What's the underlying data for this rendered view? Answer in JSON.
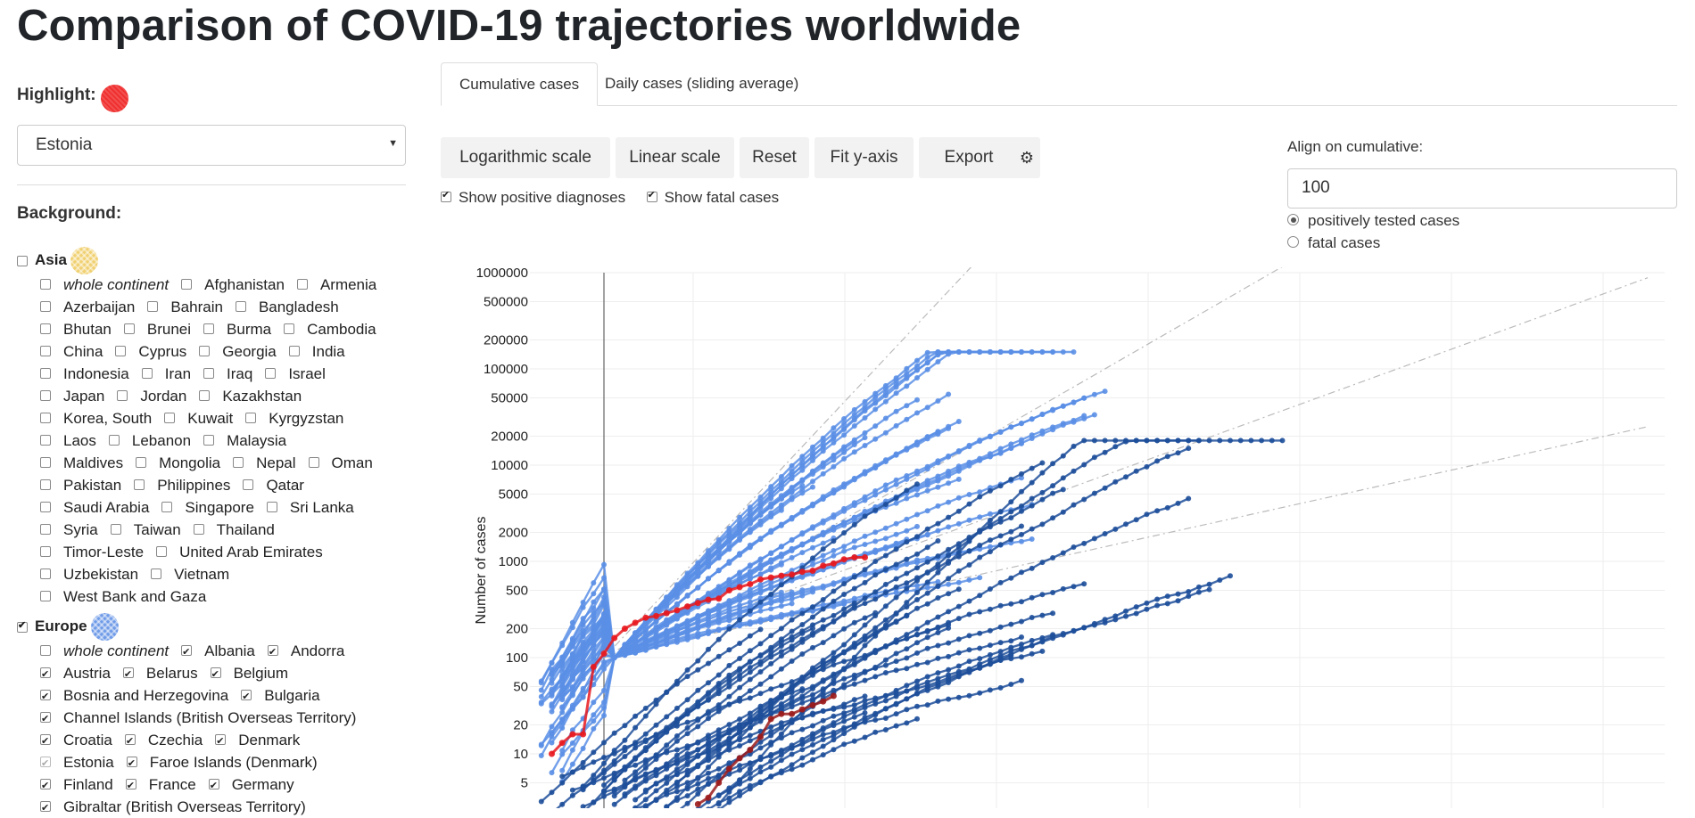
{
  "page_title": "Comparison of COVID-19 trajectories worldwide",
  "highlight": {
    "label": "Highlight:",
    "color": "#f03030",
    "selected": "Estonia"
  },
  "background_label": "Background:",
  "groups": [
    {
      "name": "Asia",
      "checked": false,
      "color": "#f0d070",
      "rows": [
        [
          {
            "label": "whole continent",
            "italic": true,
            "checked": false
          },
          {
            "label": "Afghanistan",
            "checked": false
          },
          {
            "label": "Armenia",
            "checked": false
          }
        ],
        [
          {
            "label": "Azerbaijan",
            "checked": false
          },
          {
            "label": "Bahrain",
            "checked": false
          },
          {
            "label": "Bangladesh",
            "checked": false
          }
        ],
        [
          {
            "label": "Bhutan",
            "checked": false
          },
          {
            "label": "Brunei",
            "checked": false
          },
          {
            "label": "Burma",
            "checked": false
          },
          {
            "label": "Cambodia",
            "checked": false
          }
        ],
        [
          {
            "label": "China",
            "checked": false
          },
          {
            "label": "Cyprus",
            "checked": false
          },
          {
            "label": "Georgia",
            "checked": false
          },
          {
            "label": "India",
            "checked": false
          }
        ],
        [
          {
            "label": "Indonesia",
            "checked": false
          },
          {
            "label": "Iran",
            "checked": false
          },
          {
            "label": "Iraq",
            "checked": false
          },
          {
            "label": "Israel",
            "checked": false
          }
        ],
        [
          {
            "label": "Japan",
            "checked": false
          },
          {
            "label": "Jordan",
            "checked": false
          },
          {
            "label": "Kazakhstan",
            "checked": false
          }
        ],
        [
          {
            "label": "Korea, South",
            "checked": false
          },
          {
            "label": "Kuwait",
            "checked": false
          },
          {
            "label": "Kyrgyzstan",
            "checked": false
          }
        ],
        [
          {
            "label": "Laos",
            "checked": false
          },
          {
            "label": "Lebanon",
            "checked": false
          },
          {
            "label": "Malaysia",
            "checked": false
          }
        ],
        [
          {
            "label": "Maldives",
            "checked": false
          },
          {
            "label": "Mongolia",
            "checked": false
          },
          {
            "label": "Nepal",
            "checked": false
          },
          {
            "label": "Oman",
            "checked": false
          }
        ],
        [
          {
            "label": "Pakistan",
            "checked": false
          },
          {
            "label": "Philippines",
            "checked": false
          },
          {
            "label": "Qatar",
            "checked": false
          }
        ],
        [
          {
            "label": "Saudi Arabia",
            "checked": false
          },
          {
            "label": "Singapore",
            "checked": false
          },
          {
            "label": "Sri Lanka",
            "checked": false
          }
        ],
        [
          {
            "label": "Syria",
            "checked": false
          },
          {
            "label": "Taiwan",
            "checked": false
          },
          {
            "label": "Thailand",
            "checked": false
          }
        ],
        [
          {
            "label": "Timor-Leste",
            "checked": false
          },
          {
            "label": "United Arab Emirates",
            "checked": false
          }
        ],
        [
          {
            "label": "Uzbekistan",
            "checked": false
          },
          {
            "label": "Vietnam",
            "checked": false
          }
        ],
        [
          {
            "label": "West Bank and Gaza",
            "checked": false
          }
        ]
      ]
    },
    {
      "name": "Europe",
      "checked": true,
      "color": "#6f9be8",
      "rows": [
        [
          {
            "label": "whole continent",
            "italic": true,
            "checked": false
          },
          {
            "label": "Albania",
            "checked": true
          },
          {
            "label": "Andorra",
            "checked": true
          }
        ],
        [
          {
            "label": "Austria",
            "checked": true
          },
          {
            "label": "Belarus",
            "checked": true
          },
          {
            "label": "Belgium",
            "checked": true
          }
        ],
        [
          {
            "label": "Bosnia and Herzegovina",
            "checked": true
          },
          {
            "label": "Bulgaria",
            "checked": true
          }
        ],
        [
          {
            "label": "Channel Islands (British Overseas Territory)",
            "checked": true
          }
        ],
        [
          {
            "label": "Croatia",
            "checked": true
          },
          {
            "label": "Czechia",
            "checked": true
          },
          {
            "label": "Denmark",
            "checked": true
          }
        ],
        [
          {
            "label": "Estonia",
            "checked": true,
            "dim": true
          },
          {
            "label": "Faroe Islands (Denmark)",
            "checked": true
          }
        ],
        [
          {
            "label": "Finland",
            "checked": true
          },
          {
            "label": "France",
            "checked": true
          },
          {
            "label": "Germany",
            "checked": true
          }
        ],
        [
          {
            "label": "Gibraltar (British Overseas Territory)",
            "checked": true
          }
        ]
      ]
    }
  ],
  "tabs": [
    {
      "label": "Cumulative cases",
      "active": true
    },
    {
      "label": "Daily cases (sliding average)",
      "active": false
    }
  ],
  "toolbar": {
    "log_scale": "Logarithmic scale",
    "linear_scale": "Linear scale",
    "reset": "Reset",
    "fit_y": "Fit y-axis",
    "export": "Export",
    "settings_icon": "gear-icon"
  },
  "options": {
    "show_positive": "Show positive diagnoses",
    "show_positive_checked": true,
    "show_fatal": "Show fatal cases",
    "show_fatal_checked": true
  },
  "align": {
    "label": "Align on cumulative:",
    "value": "100",
    "choices": [
      {
        "label": "positively tested cases",
        "selected": true
      },
      {
        "label": "fatal cases",
        "selected": false
      }
    ]
  },
  "chart_data": {
    "type": "line",
    "ylabel": "Number of cases",
    "yscale": "log",
    "ylim": [
      3,
      1000000
    ],
    "yticks": [
      "1000000",
      "500000",
      "200000",
      "100000",
      "50000",
      "20000",
      "10000",
      "5000",
      "2000",
      "1000",
      "500",
      "200",
      "100",
      "50",
      "20",
      "10",
      "5"
    ],
    "grid": true,
    "colors": {
      "case_series": "#5b8fe6",
      "fatal_series": "#1e4f9a",
      "highlight_cases": "#e8191f",
      "highlight_fatal": "#9b1b1b",
      "guides": "#bbbbbb"
    },
    "x_unit": "days since alignment threshold",
    "highlight_series": {
      "name": "Estonia",
      "cases": [
        [
          -5,
          10
        ],
        [
          -4,
          13
        ],
        [
          -3,
          16
        ],
        [
          -2,
          16
        ],
        [
          -1,
          80
        ],
        [
          0,
          110
        ],
        [
          1,
          160
        ],
        [
          2,
          200
        ],
        [
          3,
          230
        ],
        [
          4,
          260
        ],
        [
          5,
          270
        ],
        [
          6,
          290
        ],
        [
          7,
          310
        ],
        [
          8,
          340
        ],
        [
          9,
          370
        ],
        [
          10,
          400
        ],
        [
          11,
          410
        ],
        [
          12,
          500
        ],
        [
          13,
          540
        ],
        [
          14,
          580
        ],
        [
          15,
          650
        ],
        [
          16,
          680
        ],
        [
          17,
          710
        ],
        [
          18,
          730
        ],
        [
          19,
          780
        ],
        [
          20,
          800
        ],
        [
          21,
          900
        ],
        [
          22,
          950
        ],
        [
          23,
          1050
        ],
        [
          24,
          1100
        ],
        [
          25,
          1100
        ]
      ],
      "fatal": [
        [
          9,
          3
        ],
        [
          10,
          3.5
        ],
        [
          11,
          5
        ],
        [
          12,
          7
        ],
        [
          13,
          9
        ],
        [
          14,
          11
        ],
        [
          15,
          15
        ],
        [
          16,
          23
        ],
        [
          17,
          26
        ],
        [
          18,
          26
        ],
        [
          19,
          29
        ],
        [
          20,
          32
        ],
        [
          21,
          35
        ],
        [
          22,
          40
        ]
      ]
    }
  }
}
